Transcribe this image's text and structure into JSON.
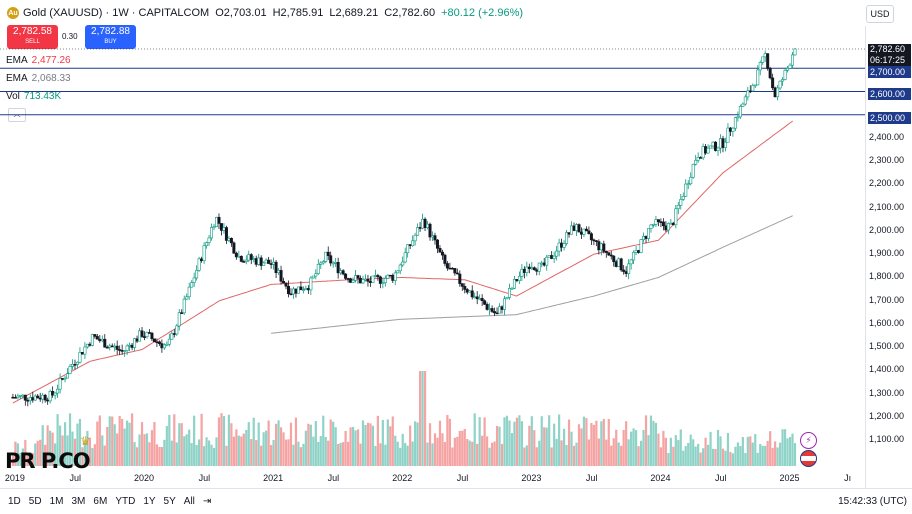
{
  "header": {
    "symbol": "Gold (XAUUSD) · 1W · CAPITALCOM",
    "open": "O2,703.01",
    "high": "H2,785.91",
    "low": "L2,689.21",
    "close": "C2,782.60",
    "change": "+80.12 (+2.96%)",
    "currency": "USD"
  },
  "trade": {
    "sell_price": "2,782.58",
    "sell_label": "SELL",
    "spread": "0.30",
    "buy_price": "2,782.88",
    "buy_label": "BUY"
  },
  "indicators": [
    {
      "name": "EMA",
      "value": "2,477.26",
      "color": "#f23645"
    },
    {
      "name": "EMA",
      "value": "2,068.33",
      "color": "#787b86"
    },
    {
      "name": "Vol",
      "value": "713.43K",
      "color": "#089981"
    }
  ],
  "price_axis": {
    "last_price": "2,782.60",
    "countdown": "06:17:25",
    "badges": [
      "2,700.00",
      "2,600.00",
      "2,500.00"
    ],
    "ticks": [
      "2,400.00",
      "2,300.00",
      "2,200.00",
      "2,100.00",
      "2,000.00",
      "1,900.00",
      "1,800.00",
      "1,700.00",
      "1,600.00",
      "1,500.00",
      "1,400.00",
      "1,300.00",
      "1,200.00",
      "1,100.00"
    ]
  },
  "time_axis": [
    "2019",
    "Jul",
    "2020",
    "Jul",
    "2021",
    "Jul",
    "2022",
    "Jul",
    "2023",
    "Jul",
    "2024",
    "Jul",
    "2025",
    "Jı"
  ],
  "toolbar": {
    "ranges": [
      "1D",
      "5D",
      "1M",
      "3M",
      "6M",
      "YTD",
      "1Y",
      "5Y",
      "All"
    ],
    "clock": "15:42:33 (UTC)"
  },
  "watermark": "PR P.CO",
  "colors": {
    "up": "#089981",
    "down": "#131722",
    "ema_fast": "#e06666",
    "ema_slow": "#9e9e9e",
    "vol_up": "#8fd3c8",
    "vol_down": "#f5a3a3",
    "level": "#1e3a8a"
  },
  "chart_data": {
    "type": "candlestick",
    "title": "Gold (XAUUSD) · 1W · CAPITALCOM",
    "ylim": [
      1100,
      2800
    ],
    "horizontal_levels": [
      2700,
      2600,
      2500
    ],
    "anchors": [
      [
        2019.0,
        1285
      ],
      [
        2019.3,
        1290
      ],
      [
        2019.45,
        1420
      ],
      [
        2019.62,
        1545
      ],
      [
        2019.85,
        1480
      ],
      [
        2020.0,
        1560
      ],
      [
        2020.2,
        1500
      ],
      [
        2020.35,
        1720
      ],
      [
        2020.57,
        2060
      ],
      [
        2020.75,
        1890
      ],
      [
        2021.0,
        1860
      ],
      [
        2021.15,
        1740
      ],
      [
        2021.3,
        1770
      ],
      [
        2021.42,
        1890
      ],
      [
        2021.6,
        1800
      ],
      [
        2021.75,
        1780
      ],
      [
        2021.95,
        1805
      ],
      [
        2022.18,
        2050
      ],
      [
        2022.35,
        1850
      ],
      [
        2022.55,
        1730
      ],
      [
        2022.75,
        1640
      ],
      [
        2022.9,
        1790
      ],
      [
        2023.0,
        1860
      ],
      [
        2023.1,
        1840
      ],
      [
        2023.35,
        2020
      ],
      [
        2023.55,
        1930
      ],
      [
        2023.75,
        1830
      ],
      [
        2023.95,
        2030
      ],
      [
        2024.1,
        2020
      ],
      [
        2024.3,
        2330
      ],
      [
        2024.5,
        2380
      ],
      [
        2024.75,
        2650
      ],
      [
        2024.83,
        2760
      ],
      [
        2024.9,
        2580
      ],
      [
        2025.0,
        2700
      ],
      [
        2025.05,
        2782.6
      ]
    ],
    "ema_fast_anchors": [
      [
        2019.0,
        1260
      ],
      [
        2019.6,
        1440
      ],
      [
        2020.0,
        1490
      ],
      [
        2020.6,
        1700
      ],
      [
        2021.0,
        1770
      ],
      [
        2021.6,
        1790
      ],
      [
        2022.0,
        1800
      ],
      [
        2022.5,
        1790
      ],
      [
        2022.9,
        1720
      ],
      [
        2023.5,
        1900
      ],
      [
        2024.0,
        1960
      ],
      [
        2024.5,
        2250
      ],
      [
        2025.05,
        2477
      ]
    ],
    "ema_slow_anchors": [
      [
        2021.0,
        1560
      ],
      [
        2022.0,
        1620
      ],
      [
        2022.9,
        1640
      ],
      [
        2023.5,
        1720
      ],
      [
        2024.0,
        1800
      ],
      [
        2024.5,
        1930
      ],
      [
        2025.05,
        2068
      ]
    ]
  }
}
